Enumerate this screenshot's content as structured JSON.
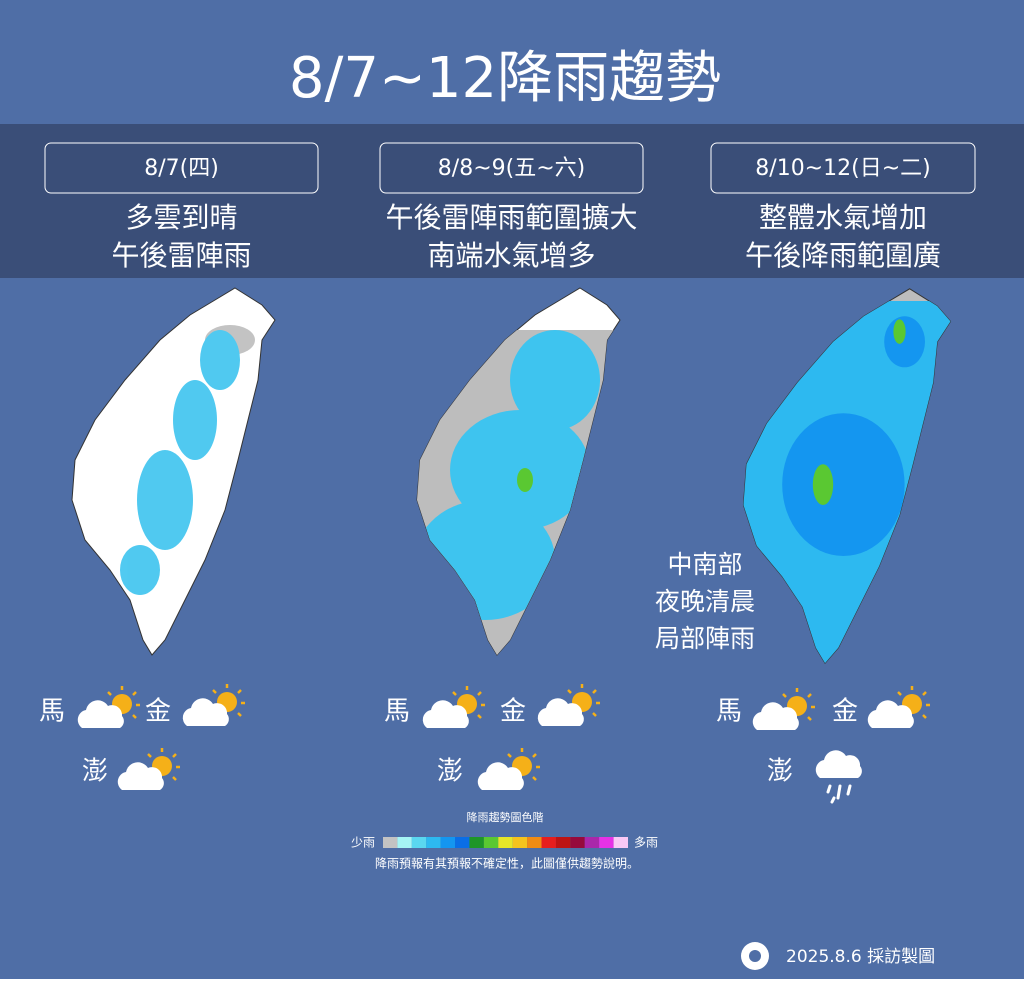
{
  "title": "8/7~12降雨趨勢",
  "panels": [
    {
      "date": "8/7(四)",
      "lines": [
        "多雲到晴",
        "午後雷陣雨"
      ],
      "islands": [
        "馬",
        "金",
        "澎"
      ]
    },
    {
      "date": "8/8~9(五~六)",
      "lines": [
        "午後雷陣雨範圍擴大",
        "南端水氣增多"
      ],
      "islands": [
        "馬",
        "金",
        "澎"
      ]
    },
    {
      "date": "8/10~12(日~二)",
      "lines": [
        "整體水氣增加",
        "午後降雨範圍廣"
      ],
      "islands": [
        "馬",
        "金",
        "澎"
      ],
      "annotation": [
        "中南部",
        "夜晚清晨",
        "局部陣雨"
      ]
    }
  ],
  "legend": {
    "title": "降雨趨勢圖色階",
    "low": "少雨",
    "high": "多雨",
    "colors": [
      "#c3c3c3",
      "#a5f5f5",
      "#5ad7f0",
      "#2db9f0",
      "#1496f0",
      "#0a6ee6",
      "#1e9628",
      "#5ac832",
      "#e6e628",
      "#f5c31e",
      "#f08c14",
      "#e61e1e",
      "#be1414",
      "#960a3c",
      "#aa28aa",
      "#e632e6",
      "#fac8f5"
    ],
    "note": "降雨預報有其預報不確定性，此圖僅供趨勢說明。"
  },
  "footer": "2025.8.6 採訪製圖"
}
